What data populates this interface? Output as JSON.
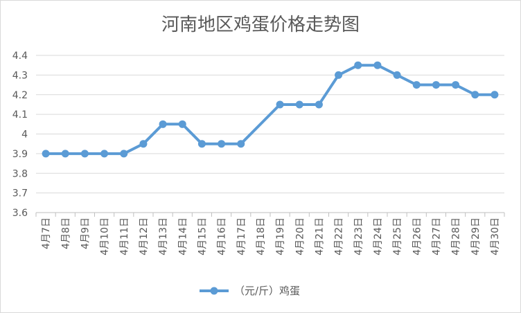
{
  "chart_data": {
    "type": "line",
    "title": "河南地区鸡蛋价格走势图",
    "categories": [
      "4月7日",
      "4月8日",
      "4月9日",
      "4月10日",
      "4月11日",
      "4月12日",
      "4月13日",
      "4月14日",
      "4月15日",
      "4月16日",
      "4月17日",
      "4月18日",
      "4月19日",
      "4月20日",
      "4月21日",
      "4月22日",
      "4月23日",
      "4月24日",
      "4月25日",
      "4月26日",
      "4月27日",
      "4月28日",
      "4月29日",
      "4月30日"
    ],
    "series": [
      {
        "name": "（元/斤）鸡蛋",
        "values": [
          3.9,
          3.9,
          3.9,
          3.9,
          3.9,
          3.95,
          4.05,
          4.05,
          3.95,
          3.95,
          3.95,
          null,
          4.15,
          4.15,
          4.15,
          4.3,
          4.35,
          4.35,
          4.3,
          4.25,
          4.25,
          4.25,
          4.2,
          4.2
        ]
      }
    ],
    "ylim": [
      3.6,
      4.4
    ],
    "yticks": [
      "3.6",
      "3.7",
      "3.8",
      "3.9",
      "4",
      "4.1",
      "4.2",
      "4.3",
      "4.4"
    ],
    "grid": true,
    "legend": "bottom",
    "color": "#5b9bd5"
  }
}
